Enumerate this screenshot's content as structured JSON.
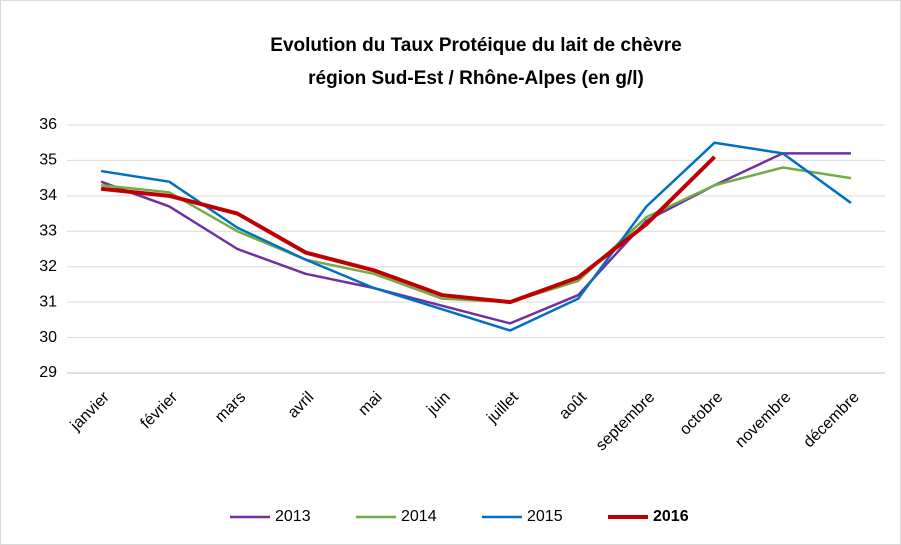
{
  "chart_data": {
    "type": "line",
    "title": [
      "Evolution du Taux Protéique du lait de chèvre",
      "région Sud-Est / Rhône-Alpes (en g/l)"
    ],
    "categories": [
      "janvier",
      "février",
      "mars",
      "avril",
      "mai",
      "juin",
      "juillet",
      "août",
      "septembre",
      "octobre",
      "novembre",
      "décembre"
    ],
    "series": [
      {
        "name": "2013",
        "color": "#7030a0",
        "values": [
          34.4,
          33.7,
          32.5,
          31.8,
          31.4,
          30.9,
          30.4,
          31.2,
          33.3,
          34.3,
          35.2,
          35.2
        ]
      },
      {
        "name": "2014",
        "color": "#70ad47",
        "values": [
          34.3,
          34.1,
          33.0,
          32.2,
          31.8,
          31.1,
          31.0,
          31.6,
          33.4,
          34.3,
          34.8,
          34.5
        ]
      },
      {
        "name": "2015",
        "color": "#0070c0",
        "values": [
          34.7,
          34.4,
          33.1,
          32.2,
          31.4,
          30.8,
          30.2,
          31.1,
          33.7,
          35.5,
          35.2,
          33.8
        ]
      },
      {
        "name": "2016",
        "color": "#c00000",
        "emphasis": true,
        "values": [
          34.2,
          34.0,
          33.5,
          32.4,
          31.9,
          31.2,
          31.0,
          31.7,
          33.2,
          35.1,
          null,
          null
        ]
      }
    ],
    "ylim": [
      29,
      36
    ],
    "yticks": [
      29,
      30,
      31,
      32,
      33,
      34,
      35,
      36
    ],
    "grid": true,
    "legend": "bottom"
  }
}
